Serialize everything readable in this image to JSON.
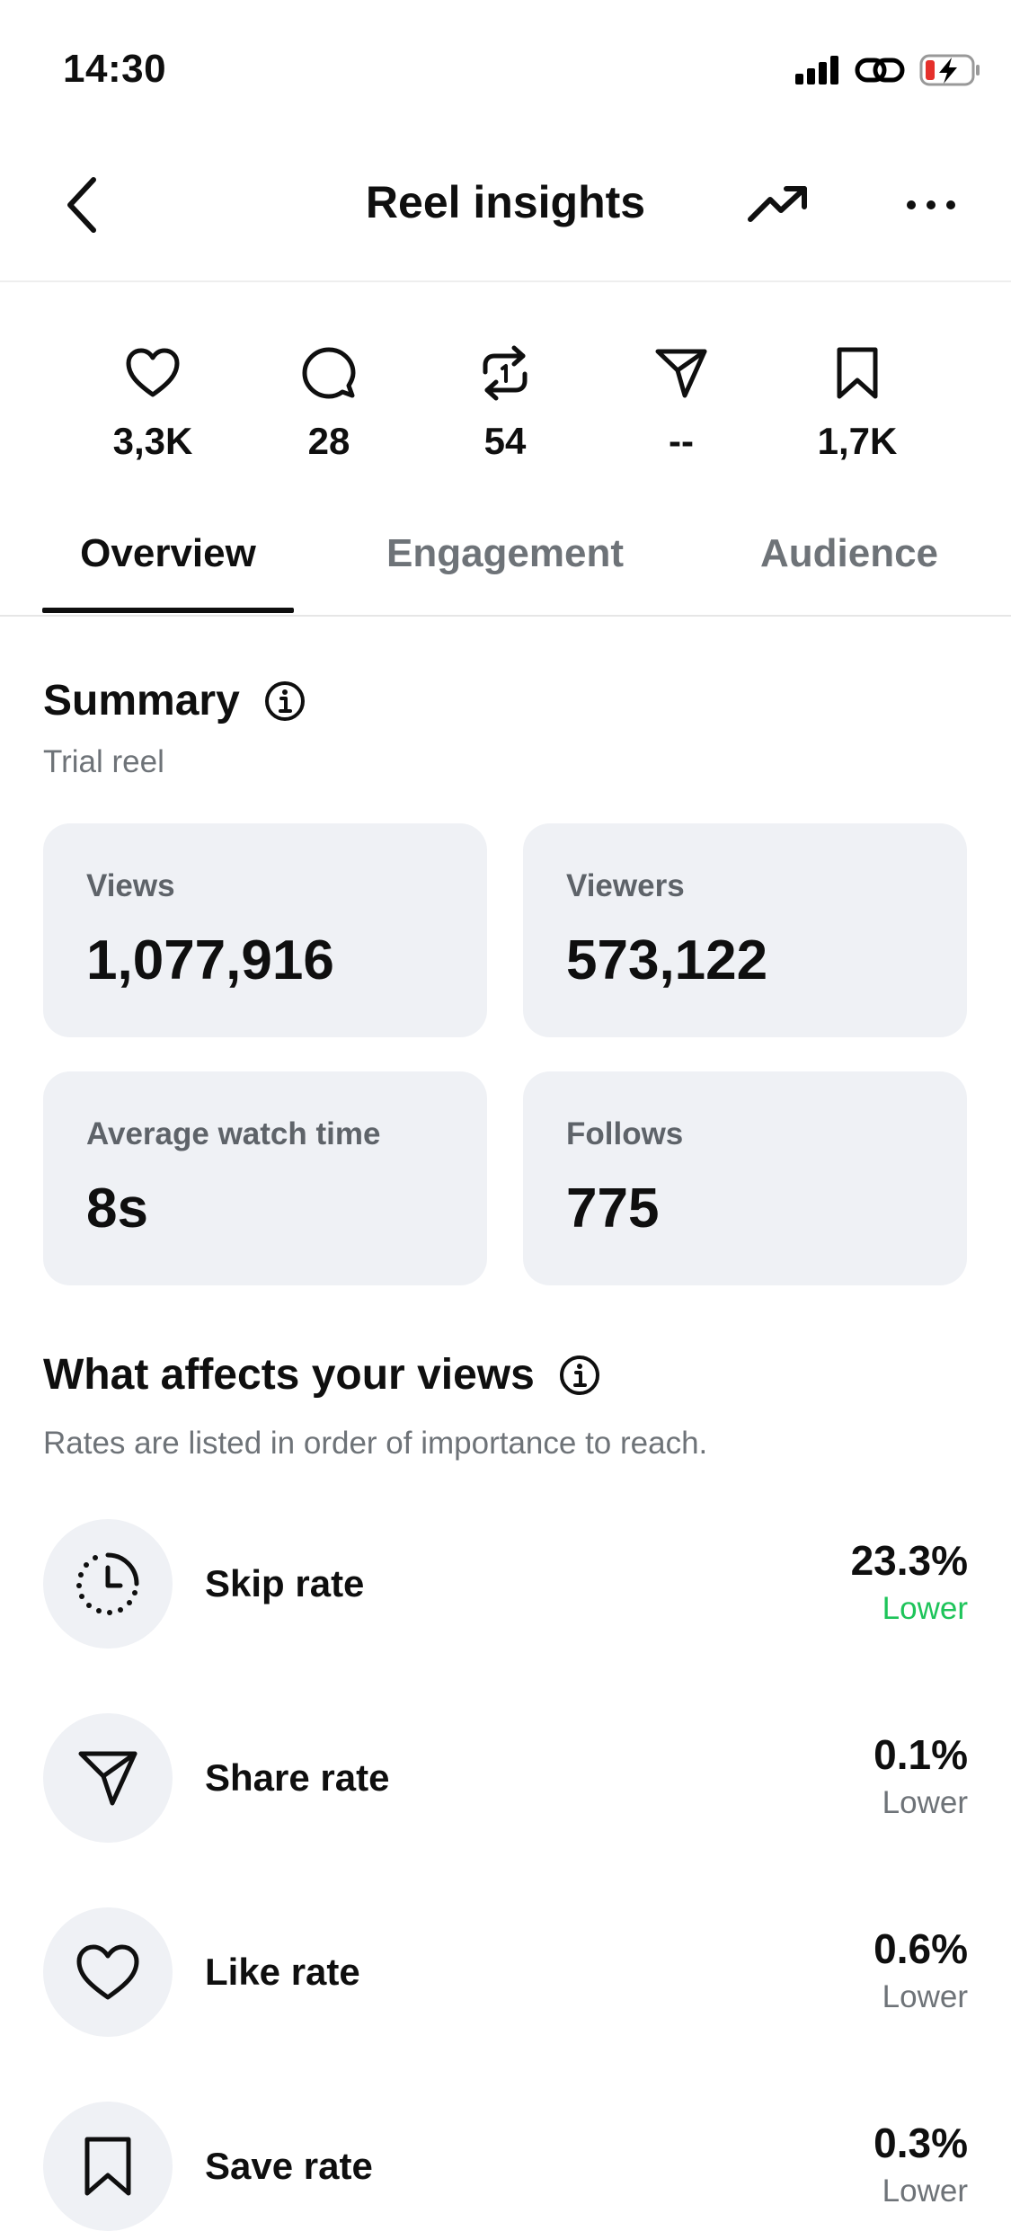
{
  "status_bar": {
    "time": "14:30"
  },
  "header": {
    "title": "Reel insights",
    "back_icon": "chevron-left-icon",
    "trend_icon": "trending-up-icon",
    "more_icon": "more-horizontal-icon"
  },
  "stats": {
    "likes": "3,3K",
    "comments": "28",
    "reposts": "54",
    "shares": "--",
    "saves": "1,7K"
  },
  "tabs": [
    {
      "label": "Overview",
      "active": true
    },
    {
      "label": "Engagement",
      "active": false
    },
    {
      "label": "Audience",
      "active": false
    }
  ],
  "summary": {
    "title": "Summary",
    "subtitle": "Trial reel",
    "cards": [
      {
        "label": "Views",
        "value": "1,077,916"
      },
      {
        "label": "Viewers",
        "value": "573,122"
      },
      {
        "label": "Average watch time",
        "value": "8s"
      },
      {
        "label": "Follows",
        "value": "775"
      }
    ]
  },
  "affects": {
    "title": "What affects your views",
    "subtitle": "Rates are listed in order of importance to reach.",
    "rates": [
      {
        "label": "Skip rate",
        "value": "23.3%",
        "trend": "Lower",
        "icon": "timer-icon"
      },
      {
        "label": "Share rate",
        "value": "0.1%",
        "trend": "Lower",
        "icon": "send-icon"
      },
      {
        "label": "Like rate",
        "value": "0.6%",
        "trend": "Lower",
        "icon": "heart-icon"
      },
      {
        "label": "Save rate",
        "value": "0.3%",
        "trend": "Lower",
        "icon": "bookmark-icon"
      }
    ]
  },
  "colors": {
    "accent_positive": "#1ec45a",
    "muted_text": "#6e7378",
    "card_bg": "#eff1f5"
  }
}
